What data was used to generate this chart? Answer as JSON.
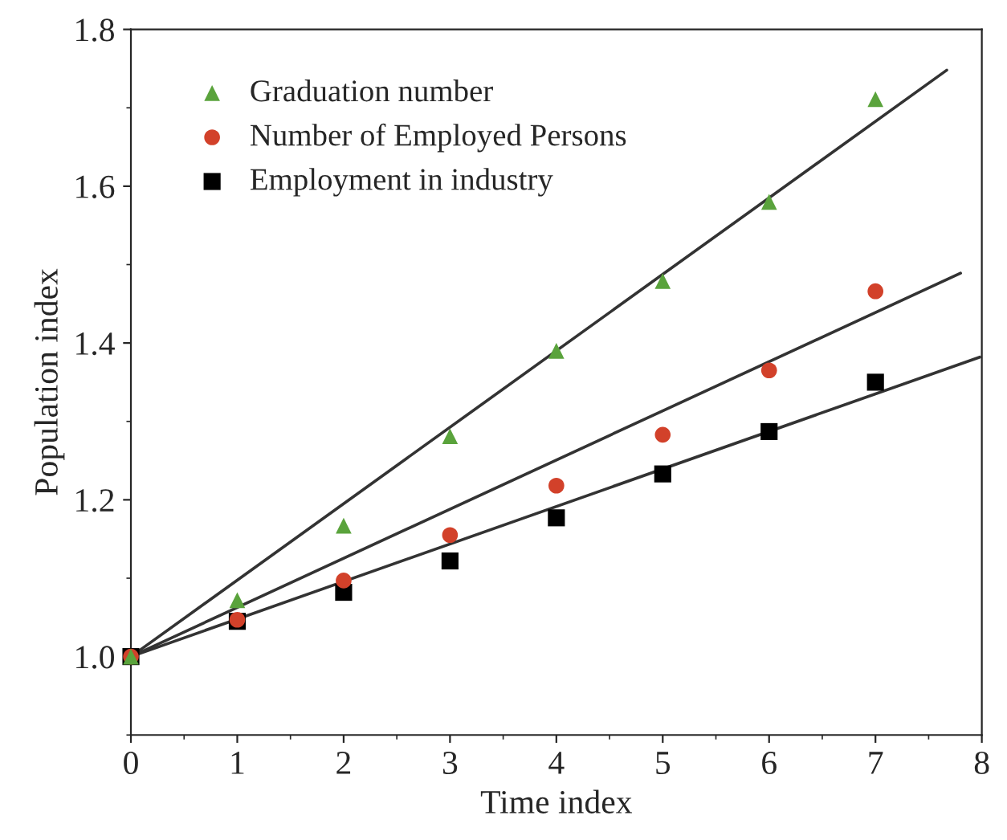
{
  "chart_data": {
    "type": "scatter",
    "xlabel": "Time index",
    "ylabel": "Population index",
    "x": [
      0,
      1,
      2,
      3,
      4,
      5,
      6,
      7
    ],
    "series": [
      {
        "name": "Graduation number",
        "color": "#5aa33c",
        "marker": "triangle",
        "values": [
          1.0,
          1.072,
          1.167,
          1.281,
          1.39,
          1.479,
          1.58,
          1.711
        ]
      },
      {
        "name": "Number of Employed Persons",
        "color": "#d2412a",
        "marker": "circle",
        "values": [
          1.0,
          1.047,
          1.097,
          1.155,
          1.218,
          1.283,
          1.365,
          1.466
        ]
      },
      {
        "name": "Employment in industry",
        "color": "#000000",
        "marker": "square",
        "values": [
          1.0,
          1.045,
          1.082,
          1.122,
          1.177,
          1.233,
          1.287,
          1.35
        ]
      },
      {
        "type": "line",
        "color": "#333333",
        "marker": "none",
        "line_style": "solid",
        "x": [
          0,
          7.67
        ],
        "values": [
          1.0,
          1.748
        ]
      },
      {
        "type": "line",
        "color": "#333333",
        "marker": "none",
        "line_style": "solid",
        "x": [
          0,
          7.8
        ],
        "values": [
          1.0,
          1.489
        ]
      },
      {
        "type": "line",
        "color": "#333333",
        "marker": "none",
        "line_style": "solid",
        "x": [
          0,
          7.98
        ],
        "values": [
          1.0,
          1.382
        ]
      }
    ],
    "xlim": [
      0,
      8
    ],
    "xticks": [
      0,
      1,
      2,
      3,
      4,
      5,
      6,
      7,
      8
    ],
    "ylim": [
      0.9,
      1.8
    ],
    "yticks": [
      {
        "value": 1.0,
        "label": "1.0"
      },
      {
        "value": 1.2,
        "label": "1.2"
      },
      {
        "value": 1.4,
        "label": "1.4"
      },
      {
        "value": 1.6,
        "label": "1.6"
      },
      {
        "value": 1.8,
        "label": "1.8"
      }
    ],
    "grid": false,
    "legend": "top left"
  }
}
